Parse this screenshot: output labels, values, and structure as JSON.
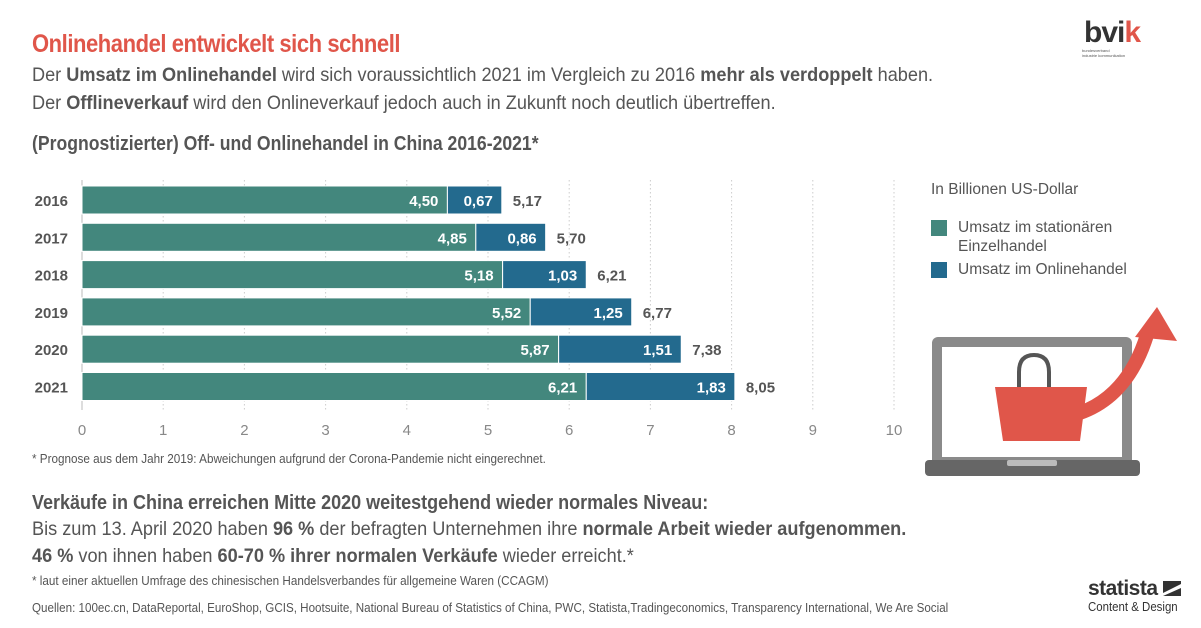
{
  "header": {
    "title": "Onlinehandel entwickelt sich schnell",
    "line1": [
      {
        "text": "Der ",
        "bold": false
      },
      {
        "text": "Umsatz im Onlinehandel",
        "bold": true
      },
      {
        "text": " wird sich voraussichtlich 2021 im Vergleich zu 2016 ",
        "bold": false
      },
      {
        "text": "mehr als verdoppelt",
        "bold": true
      },
      {
        "text": " haben.",
        "bold": false
      }
    ],
    "line2": [
      {
        "text": "Der ",
        "bold": false
      },
      {
        "text": "Offlineverkauf",
        "bold": true
      },
      {
        "text": " wird den Onlineverkauf jedoch auch in Zukunft noch deutlich übertreffen.",
        "bold": false
      }
    ]
  },
  "logo": {
    "brand_main": "bvi",
    "brand_accent": "k",
    "tagline_1": "bundesverband",
    "tagline_2": "industrie kommunikation"
  },
  "colors": {
    "offline": "#43877d",
    "online": "#236a8e",
    "accent": "#e0564a",
    "text": "#555555"
  },
  "chart_data": {
    "type": "bar",
    "orientation": "horizontal",
    "stacked": true,
    "title": "(Prognostizierter) Off- und Onlinehandel in China 2016-2021*",
    "unit_label": "In Billionen US-Dollar",
    "categories": [
      "2016",
      "2017",
      "2018",
      "2019",
      "2020",
      "2021"
    ],
    "series": [
      {
        "name": "Umsatz im stationären Einzelhandel",
        "values": [
          4.5,
          4.85,
          5.18,
          5.52,
          5.87,
          6.21
        ],
        "labels": [
          "4,50",
          "4,85",
          "5,18",
          "5,52",
          "5,87",
          "6,21"
        ]
      },
      {
        "name": "Umsatz im Onlinehandel",
        "values": [
          0.67,
          0.86,
          1.03,
          1.25,
          1.51,
          1.83
        ],
        "labels": [
          "0,67",
          "0,86",
          "1,03",
          "1,25",
          "1,51",
          "1,83"
        ]
      }
    ],
    "totals": [
      5.17,
      5.7,
      6.21,
      6.77,
      7.38,
      8.05
    ],
    "total_labels": [
      "5,17",
      "5,70",
      "6,21",
      "6,77",
      "7,38",
      "8,05"
    ],
    "xlim": [
      0,
      10
    ],
    "xticks": [
      "0",
      "1",
      "2",
      "3",
      "4",
      "5",
      "6",
      "7",
      "8",
      "9",
      "10"
    ],
    "grid": true,
    "legend_position": "right",
    "footnote": "* Prognose aus dem Jahr 2019: Abweichungen aufgrund der Corona-Pandemie nicht eingerechnet."
  },
  "bottom": {
    "headline": "Verkäufe in China erreichen Mitte 2020 weitestgehend wieder normales Niveau:",
    "line1": [
      {
        "text": "Bis zum 13. April 2020 haben ",
        "bold": false
      },
      {
        "text": "96 %",
        "bold": true
      },
      {
        "text": " der befragten Unternehmen ihre ",
        "bold": false
      },
      {
        "text": "normale Arbeit wieder aufgenommen.",
        "bold": true
      }
    ],
    "line2": [
      {
        "text": "46 %",
        "bold": true
      },
      {
        "text": " von ihnen haben ",
        "bold": false
      },
      {
        "text": "60-70 % ihrer normalen Verkäufe",
        "bold": true
      },
      {
        "text": " wieder erreicht.*",
        "bold": false
      }
    ],
    "footnote": "* laut einer aktuellen Umfrage des chinesischen Handelsverbandes für allgemeine Waren (CCAGM)",
    "sources": "Quellen: 100ec.cn, DataReportal, EuroShop, GCIS, Hootsuite, National Bureau of Statistics of China, PWC, Statista,Tradingeconomics, Transparency International, We Are Social"
  },
  "statista": {
    "name": "statista",
    "tagline": "Content & Design"
  },
  "illustration": {
    "icon": "laptop-shopping-bag-growth-icon"
  }
}
